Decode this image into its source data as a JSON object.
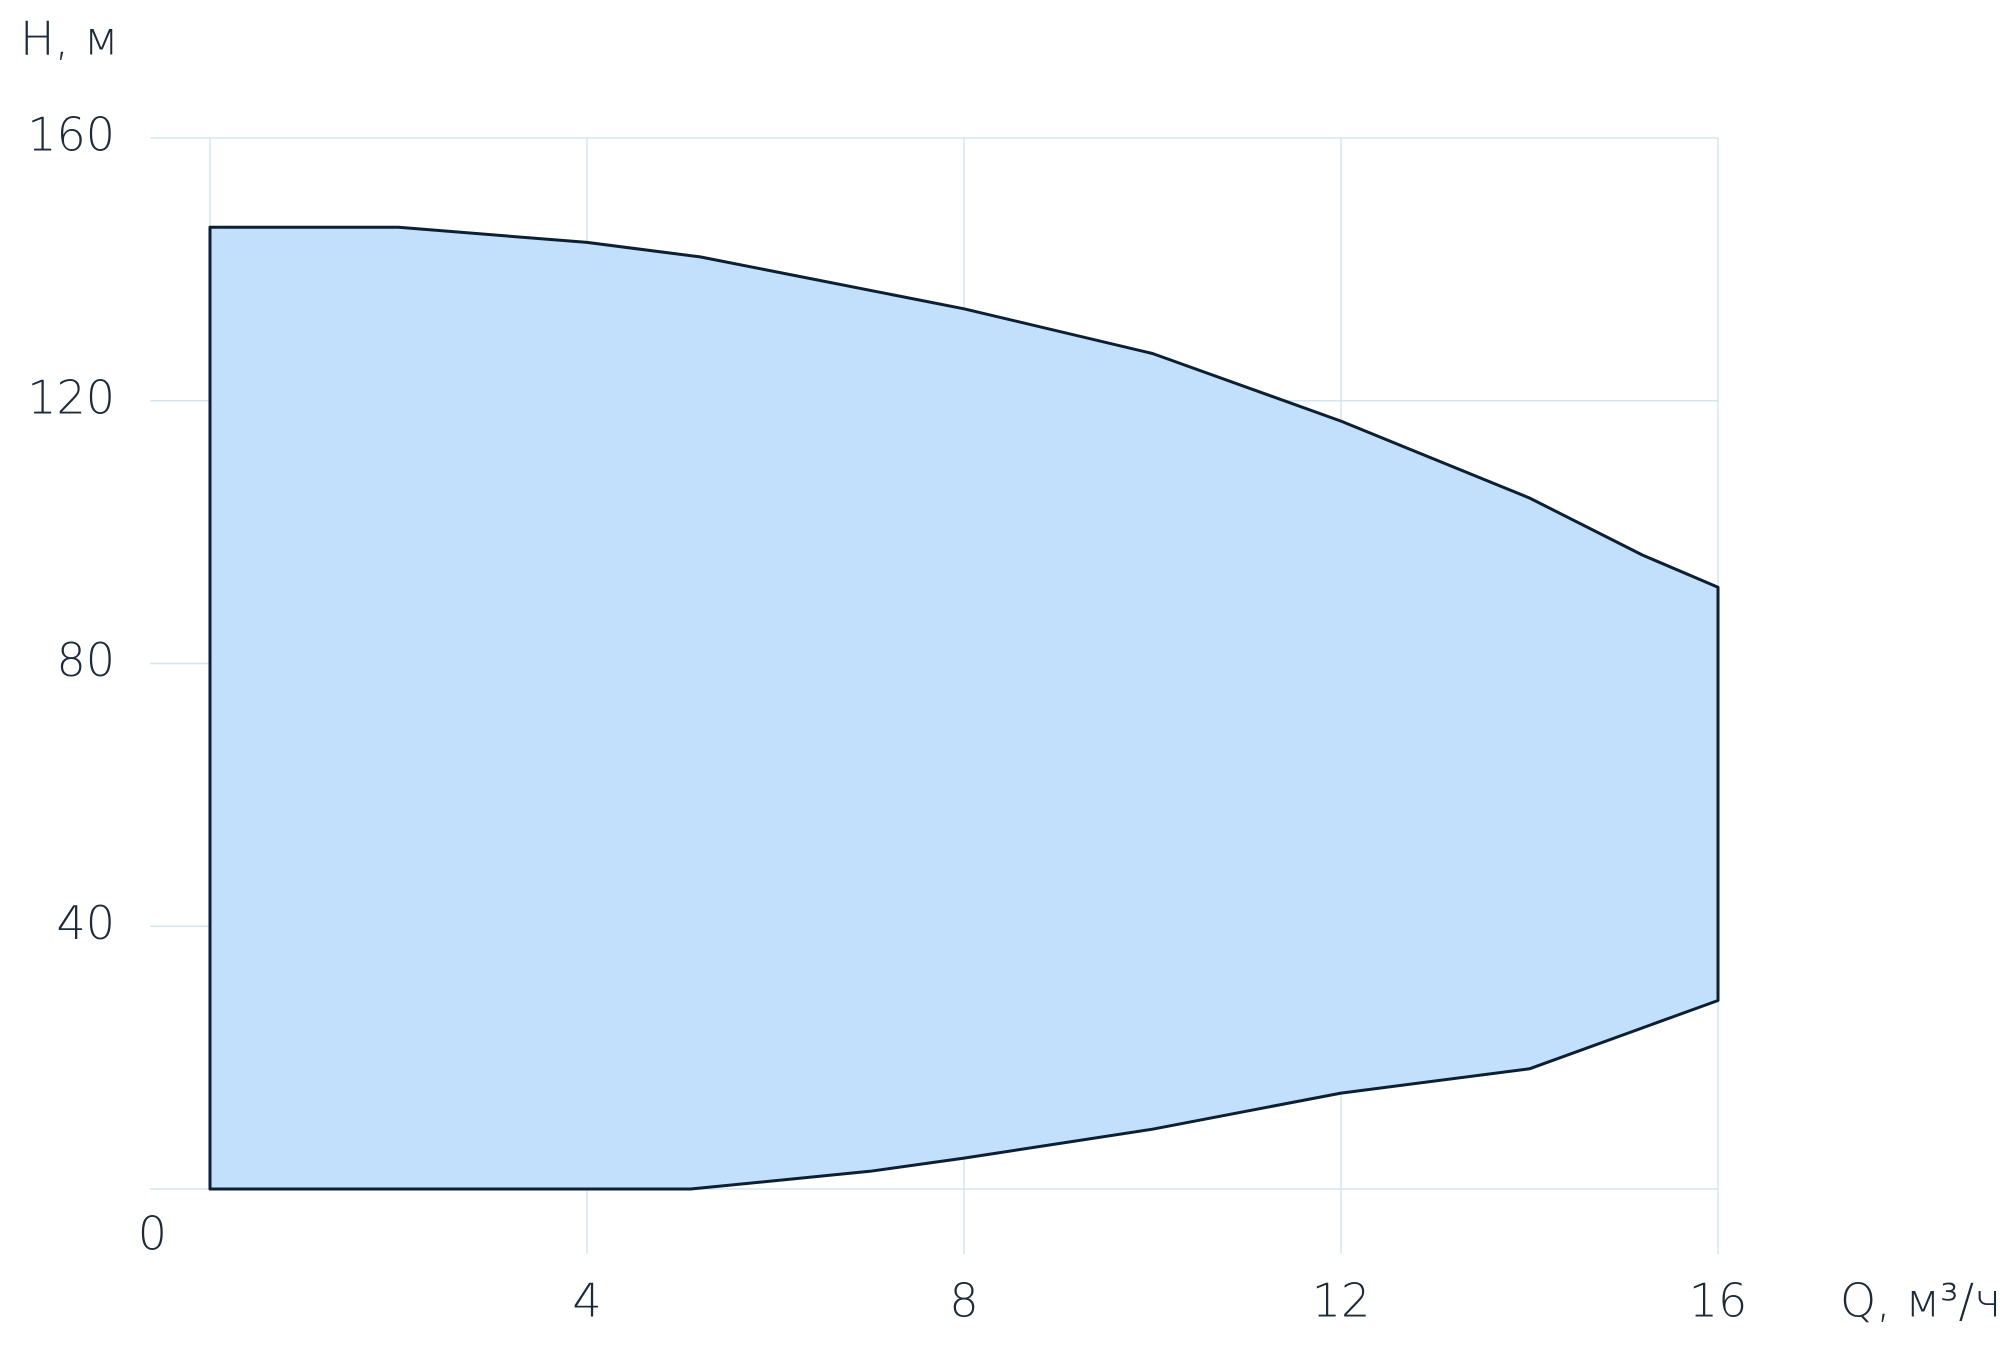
{
  "chart_data": {
    "type": "area",
    "y_label": "H, м",
    "x_label": "Q, м³/ч",
    "series": [
      {
        "color": "#c2e0fc",
        "stroke": "#0d1f33",
        "x": [
          0,
          0,
          2,
          4,
          5.2,
          8,
          10,
          12,
          14,
          15.2,
          16,
          16,
          14,
          12,
          10,
          8,
          7,
          5.1,
          0
        ],
        "values": [
          0,
          146.4,
          146.4,
          144.1,
          141.9,
          134.0,
          127.2,
          116.9,
          105.2,
          96.5,
          91.6,
          28.7,
          18.3,
          14.6,
          9.1,
          4.7,
          2.7,
          0,
          0
        ]
      }
    ],
    "xlim": [
      0,
      16
    ],
    "xticks": [
      4,
      8,
      12,
      16
    ],
    "ylim": [
      0,
      160
    ],
    "yticks": [
      0,
      40,
      80,
      120,
      160
    ],
    "grid": true
  }
}
